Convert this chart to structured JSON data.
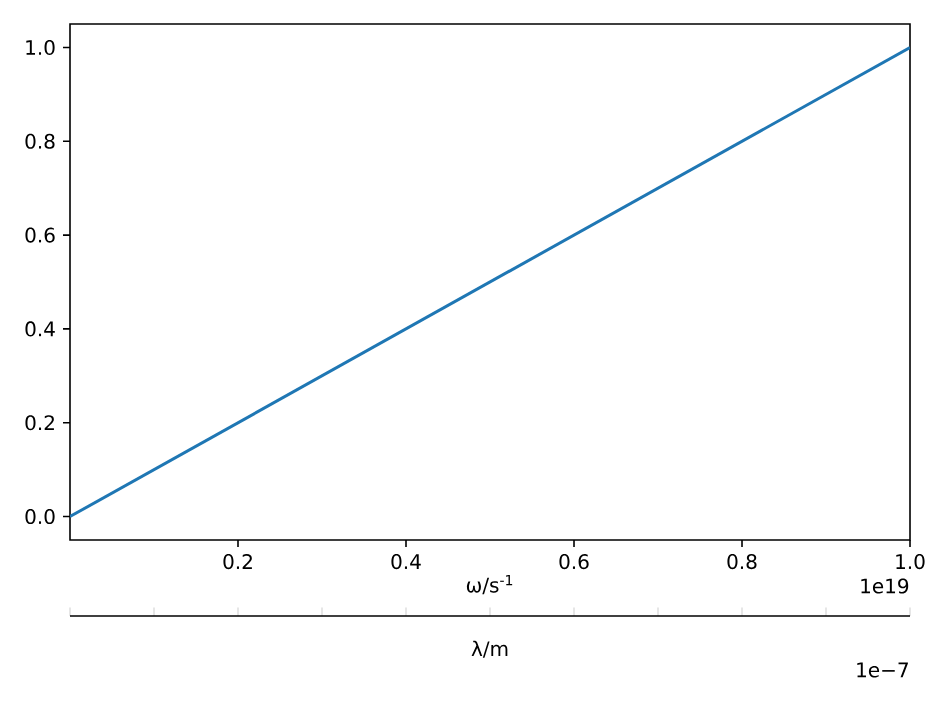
{
  "chart_data": {
    "type": "line",
    "xlabel": "ω/s$^{-1}$",
    "x2label": "λ/m",
    "x": [
      0,
      1
    ],
    "series": [
      {
        "color": "#1f77b4",
        "values": [
          0,
          1
        ]
      }
    ],
    "xlim": [
      0,
      1
    ],
    "xticks": [
      0.2,
      0.4,
      0.6,
      0.8,
      {
        "value": 1,
        "label": "1.0"
      }
    ],
    "ylim": [
      -0.05,
      1.05
    ],
    "yticks": [
      {
        "value": 0,
        "label": "0.0"
      },
      {
        "value": 0.2,
        "label": "0.2"
      },
      {
        "value": 0.4,
        "label": "0.4"
      },
      {
        "value": 0.6,
        "label": "0.6"
      },
      {
        "value": 0.8,
        "label": "0.8"
      },
      {
        "value": 1,
        "label": "1.0"
      }
    ],
    "annotations": [
      "1e19",
      "1e−7"
    ],
    "grid": false
  }
}
